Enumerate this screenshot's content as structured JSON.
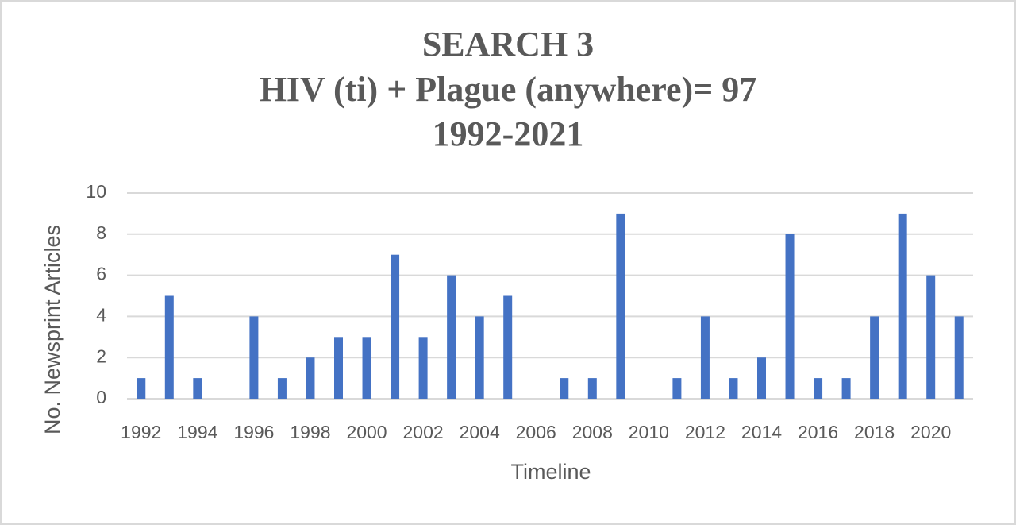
{
  "chart_data": {
    "type": "bar",
    "title": [
      "SEARCH 3",
      "HIV (ti) + Plague (anywhere)= 97",
      "1992-2021"
    ],
    "x_label": "Timeline",
    "y_label": "No. Newsprint Articles",
    "categories": [
      "1992",
      null,
      "1994",
      null,
      "1996",
      null,
      "1998",
      null,
      "2000",
      null,
      "2002",
      null,
      "2004",
      null,
      "2006",
      null,
      "2008",
      null,
      "2010",
      null,
      "2012",
      null,
      "2014",
      null,
      "2016",
      null,
      "2018",
      null,
      "2020",
      null
    ],
    "values": [
      1,
      5,
      1,
      0,
      4,
      1,
      2,
      3,
      3,
      7,
      3,
      6,
      4,
      5,
      0,
      1,
      1,
      9,
      0,
      1,
      4,
      1,
      2,
      8,
      1,
      1,
      4,
      9,
      6,
      4
    ],
    "color": "#4472c4",
    "ylim": [
      0,
      10
    ],
    "yticks": [
      0,
      2,
      4,
      6,
      8,
      10
    ],
    "grid": true
  }
}
